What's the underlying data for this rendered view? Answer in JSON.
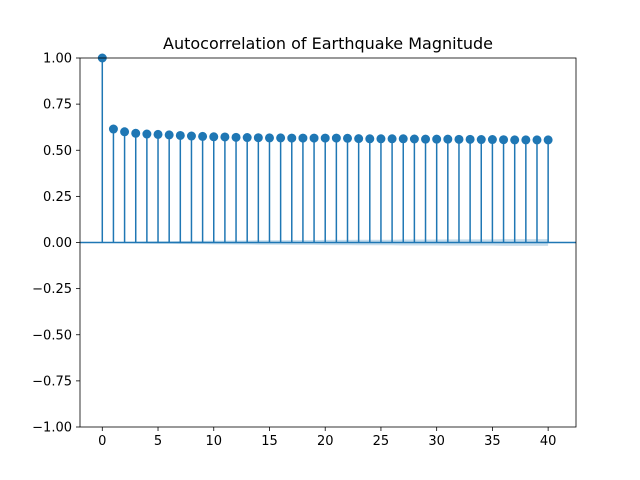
{
  "chart_data": {
    "type": "stem",
    "title": "Autocorrelation of Earthquake Magnitude",
    "xlabel": "",
    "ylabel": "",
    "xlim": [
      -2,
      42.5
    ],
    "ylim": [
      -1.0,
      1.0
    ],
    "x_ticks": [
      0,
      5,
      10,
      15,
      20,
      25,
      30,
      35,
      40
    ],
    "x_tick_labels": [
      "0",
      "5",
      "10",
      "15",
      "20",
      "25",
      "30",
      "35",
      "40"
    ],
    "y_ticks": [
      -1.0,
      -0.75,
      -0.5,
      -0.25,
      0.0,
      0.25,
      0.5,
      0.75,
      1.0
    ],
    "y_tick_labels": [
      "−1.00",
      "−0.75",
      "−0.50",
      "−0.25",
      "0.00",
      "0.25",
      "0.50",
      "0.75",
      "1.00"
    ],
    "grid": false,
    "legend": "none",
    "colors": {
      "series": "#1f77b4",
      "confidence_band": "#1f77b4"
    },
    "series": [
      {
        "lags": [
          0,
          1,
          2,
          3,
          4,
          5,
          6,
          7,
          8,
          9,
          10,
          11,
          12,
          13,
          14,
          15,
          16,
          17,
          18,
          19,
          20,
          21,
          22,
          23,
          24,
          25,
          26,
          27,
          28,
          29,
          30,
          31,
          32,
          33,
          34,
          35,
          36,
          37,
          38,
          39,
          40
        ],
        "values": [
          1.0,
          0.615,
          0.6,
          0.592,
          0.588,
          0.586,
          0.583,
          0.58,
          0.577,
          0.575,
          0.573,
          0.572,
          0.57,
          0.569,
          0.568,
          0.567,
          0.567,
          0.566,
          0.566,
          0.566,
          0.566,
          0.566,
          0.565,
          0.563,
          0.562,
          0.562,
          0.562,
          0.562,
          0.561,
          0.56,
          0.56,
          0.56,
          0.559,
          0.559,
          0.558,
          0.558,
          0.557,
          0.556,
          0.556,
          0.556,
          0.556
        ]
      }
    ],
    "confidence_interval": {
      "lags": [
        0,
        1,
        2,
        3,
        4,
        5,
        6,
        7,
        8,
        9,
        10,
        11,
        12,
        13,
        14,
        15,
        16,
        17,
        18,
        19,
        20,
        21,
        22,
        23,
        24,
        25,
        26,
        27,
        28,
        29,
        30,
        31,
        32,
        33,
        34,
        35,
        36,
        37,
        38,
        39,
        40
      ],
      "upper": [
        0,
        0.003,
        0.004,
        0.005,
        0.006,
        0.007,
        0.007,
        0.008,
        0.009,
        0.009,
        0.01,
        0.01,
        0.011,
        0.011,
        0.012,
        0.012,
        0.012,
        0.013,
        0.013,
        0.013,
        0.014,
        0.014,
        0.014,
        0.015,
        0.015,
        0.015,
        0.015,
        0.016,
        0.016,
        0.016,
        0.016,
        0.017,
        0.017,
        0.017,
        0.017,
        0.017,
        0.018,
        0.018,
        0.018,
        0.018,
        0.018
      ],
      "lower": [
        0,
        -0.003,
        -0.004,
        -0.005,
        -0.006,
        -0.007,
        -0.007,
        -0.008,
        -0.009,
        -0.009,
        -0.01,
        -0.01,
        -0.011,
        -0.011,
        -0.012,
        -0.012,
        -0.012,
        -0.013,
        -0.013,
        -0.013,
        -0.014,
        -0.014,
        -0.014,
        -0.015,
        -0.015,
        -0.015,
        -0.015,
        -0.016,
        -0.016,
        -0.016,
        -0.016,
        -0.017,
        -0.017,
        -0.017,
        -0.017,
        -0.017,
        -0.018,
        -0.018,
        -0.018,
        -0.018,
        -0.018
      ]
    }
  }
}
